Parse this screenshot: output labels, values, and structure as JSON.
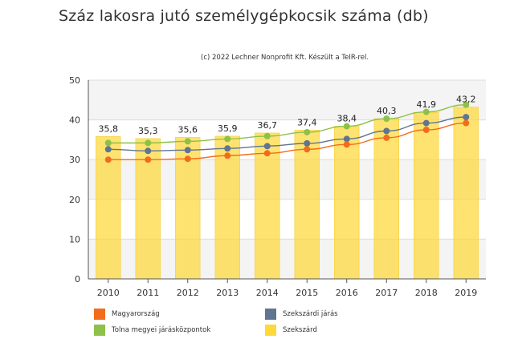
{
  "chart_data": {
    "type": "bar",
    "title": "Száz lakosra jutó személygépkocsik száma (db)",
    "subtitle": "(c) 2022 Lechner Nonprofit Kft. Készült a TeIR-rel.",
    "categories": [
      "2010",
      "2011",
      "2012",
      "2013",
      "2014",
      "2015",
      "2016",
      "2017",
      "2018",
      "2019"
    ],
    "ylim": [
      0,
      50
    ],
    "yticks": [
      0,
      10,
      20,
      30,
      40,
      50
    ],
    "grid": true,
    "legend_position": "bottom",
    "bar_series": {
      "name": "Szekszárd",
      "color": "#ffd83a",
      "values": [
        35.8,
        35.3,
        35.6,
        35.9,
        36.7,
        37.4,
        38.4,
        40.3,
        41.9,
        43.2
      ],
      "labels": [
        "35,8",
        "35,3",
        "35,6",
        "35,9",
        "36,7",
        "37,4",
        "38,4",
        "40,3",
        "41,9",
        "43,2"
      ]
    },
    "line_series": [
      {
        "name": "Tolna megyei járásközpontok",
        "color": "#8dc149",
        "values": [
          34.2,
          34.2,
          34.6,
          35.2,
          35.9,
          36.9,
          38.4,
          40.3,
          42.0,
          43.8
        ]
      },
      {
        "name": "Szekszárdi járás",
        "color": "#5f7590",
        "values": [
          32.6,
          32.2,
          32.4,
          32.8,
          33.4,
          34.1,
          35.2,
          37.2,
          39.2,
          40.7
        ]
      },
      {
        "name": "Magyarország",
        "color": "#f26d1b",
        "values": [
          30.0,
          30.0,
          30.2,
          31.0,
          31.6,
          32.6,
          33.8,
          35.5,
          37.5,
          39.2
        ]
      }
    ]
  },
  "legend": [
    {
      "name": "Magyarország",
      "color": "#f26d1b"
    },
    {
      "name": "Szekszárdi járás",
      "color": "#5f7590"
    },
    {
      "name": "Tolna megyei járásközpontok",
      "color": "#8dc149"
    },
    {
      "name": "Szekszárd",
      "color": "#ffd83a"
    }
  ]
}
